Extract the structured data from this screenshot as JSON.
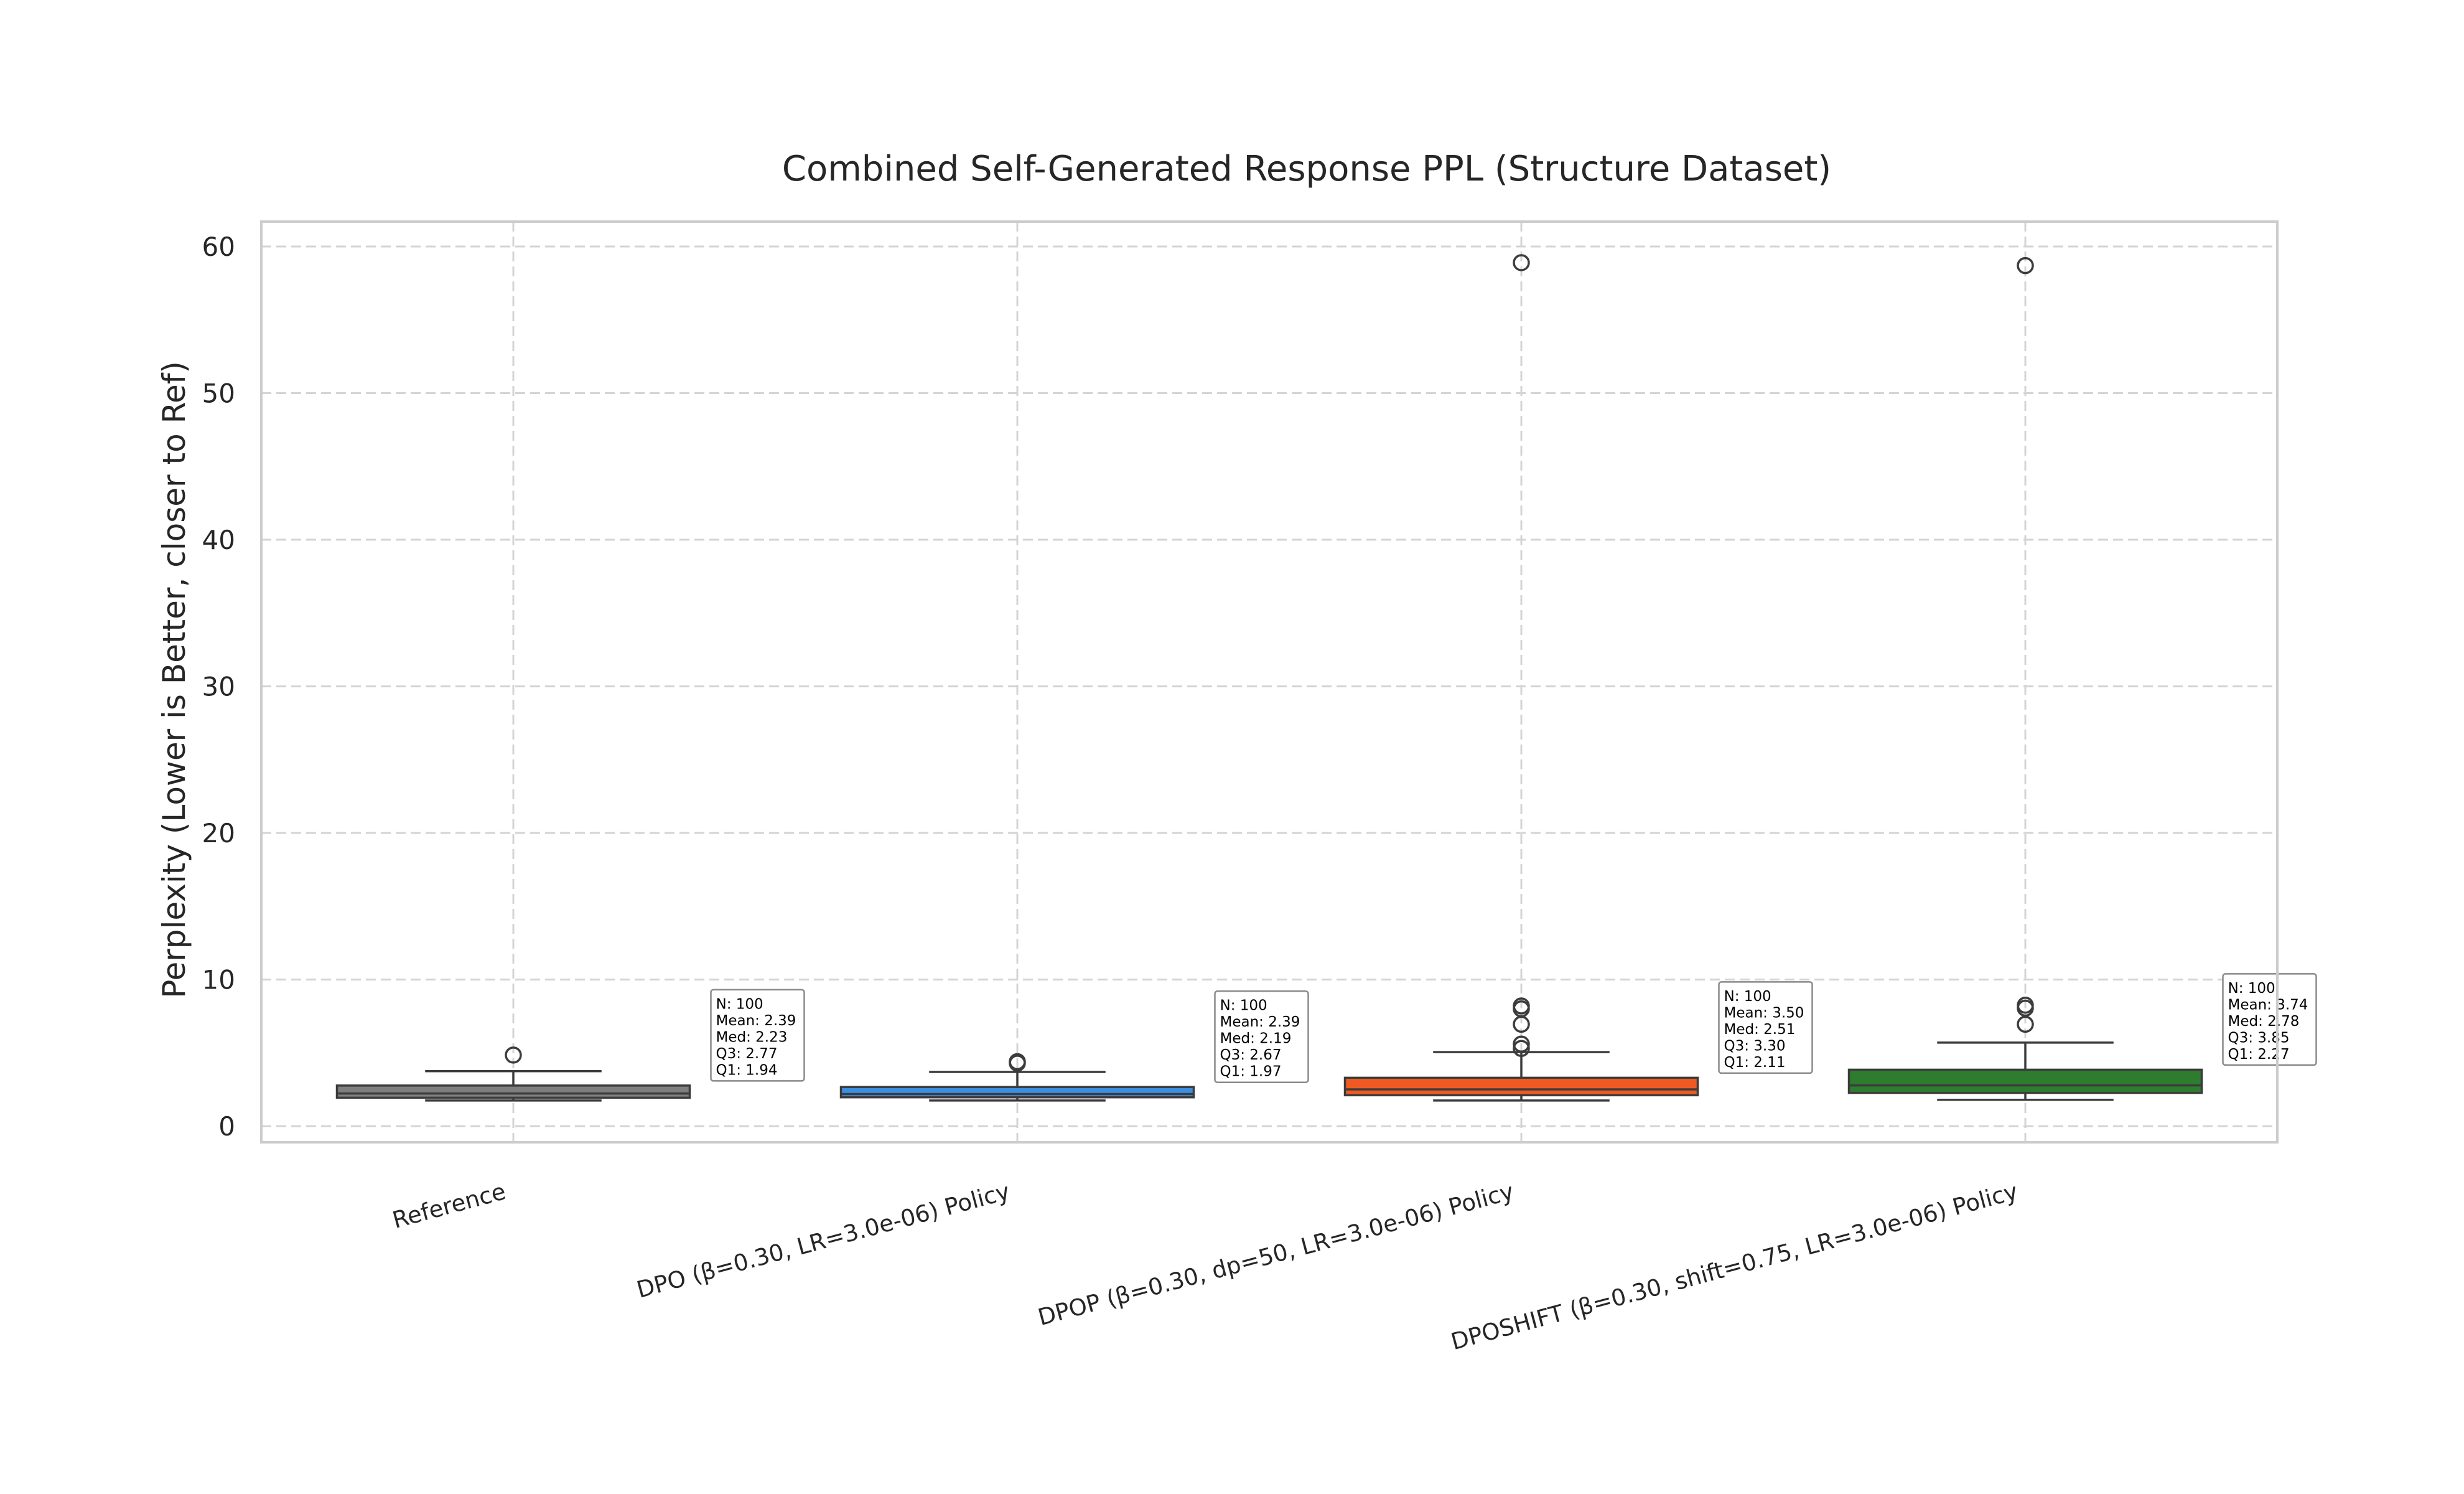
{
  "chart_data": {
    "type": "box",
    "title": "Combined Self-Generated Response PPL (Structure Dataset)",
    "xlabel": "",
    "ylabel": "Perplexity (Lower is Better, closer to Ref)",
    "ylim": [
      -1.1,
      61.7
    ],
    "yticks": [
      0,
      10,
      20,
      30,
      40,
      50,
      60
    ],
    "grid": true,
    "legend": "none",
    "categories": [
      "Reference",
      "DPO (β=0.30, LR=3.0e-06) Policy",
      "DPOP (β=0.30, dp=50, LR=3.0e-06) Policy",
      "DPOSHIFT (β=0.30, shift=0.75, LR=3.0e-06) Policy"
    ],
    "boxes": [
      {
        "color": "#7f7f7f",
        "whisker_low": 1.75,
        "q1": 1.94,
        "median": 2.23,
        "q3": 2.77,
        "whisker_high": 3.75,
        "outliers": [
          4.85
        ],
        "stats_lines": [
          "N: 100",
          "Mean: 2.39",
          "Med: 2.23",
          "Q3: 2.77",
          "Q1: 1.94"
        ]
      },
      {
        "color": "#3b8ee0",
        "whisker_low": 1.75,
        "q1": 1.97,
        "median": 2.19,
        "q3": 2.67,
        "whisker_high": 3.7,
        "outliers": [
          4.3,
          4.4
        ],
        "stats_lines": [
          "N: 100",
          "Mean: 2.39",
          "Med: 2.19",
          "Q3: 2.67",
          "Q1: 1.97"
        ]
      },
      {
        "color": "#f05a22",
        "whisker_low": 1.75,
        "q1": 2.11,
        "median": 2.51,
        "q3": 3.3,
        "whisker_high": 5.05,
        "outliers": [
          5.3,
          5.6,
          6.95,
          8.0,
          8.2,
          58.9
        ],
        "stats_lines": [
          "N: 100",
          "Mean: 3.50",
          "Med: 2.51",
          "Q3: 3.30",
          "Q1: 2.11"
        ]
      },
      {
        "color": "#2e7d2e",
        "whisker_low": 1.8,
        "q1": 2.27,
        "median": 2.78,
        "q3": 3.85,
        "whisker_high": 5.7,
        "outliers": [
          6.95,
          8.05,
          8.25,
          58.7
        ],
        "stats_lines": [
          "N: 100",
          "Mean: 3.74",
          "Med: 2.78",
          "Q3: 3.85",
          "Q1: 2.27"
        ]
      }
    ]
  }
}
